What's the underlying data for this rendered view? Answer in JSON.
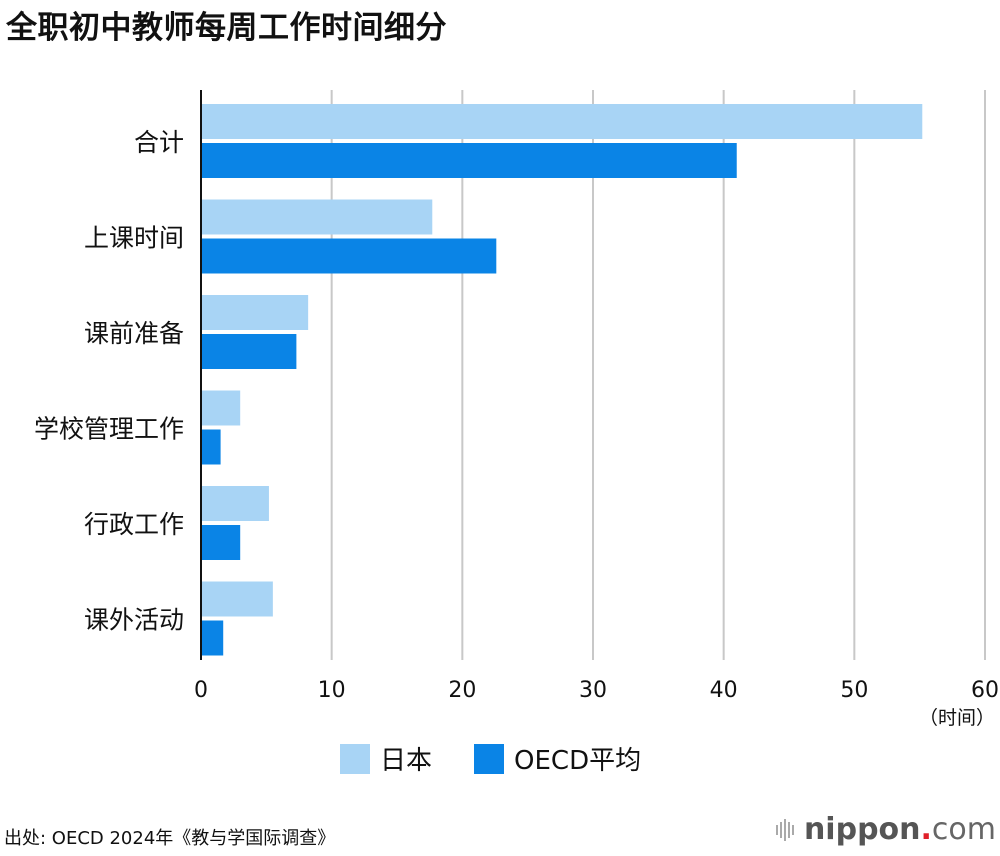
{
  "title": "全职初中教师每周工作时间细分",
  "chart_data": {
    "type": "bar",
    "orientation": "horizontal",
    "title": "全职初中教师每周工作时间细分",
    "categories": [
      "合计",
      "上课时间",
      "课前准备",
      "学校管理工作",
      "行政工作",
      "课外活动"
    ],
    "series": [
      {
        "name": "日本",
        "color": "#a8d4f5",
        "values": [
          55.2,
          17.7,
          8.2,
          3.0,
          5.2,
          5.5
        ]
      },
      {
        "name": "OECD平均",
        "color": "#0a84e6",
        "values": [
          41.0,
          22.6,
          7.3,
          1.5,
          3.0,
          1.7
        ]
      }
    ],
    "xlim": [
      0,
      60
    ],
    "xticks": [
      "0",
      "10",
      "20",
      "30",
      "40",
      "50",
      "60"
    ],
    "xunit": "（时间）",
    "grid": true,
    "legend": "bottom"
  },
  "source": "出处: OECD 2024年《教与学国际调查》",
  "logo": {
    "name": "nippon",
    "dot": ".",
    "tld": "com"
  }
}
